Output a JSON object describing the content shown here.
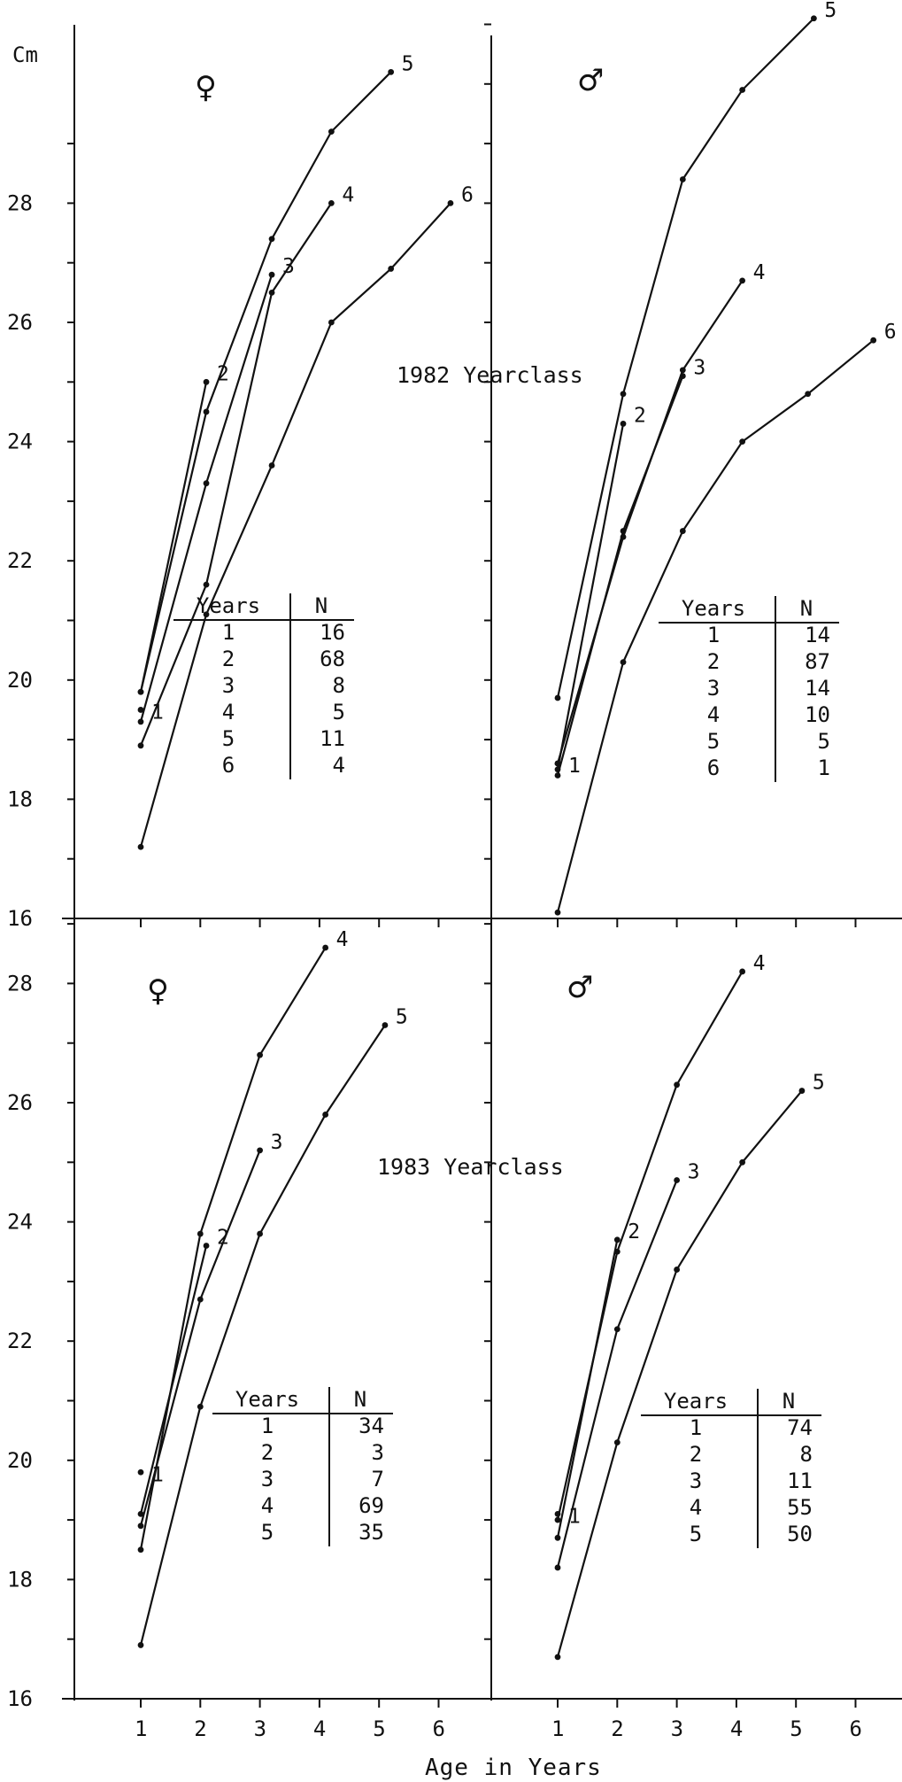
{
  "figure": {
    "y_unit": "Cm",
    "xlabel": "Age in Years",
    "panels_meta": [
      {
        "symbol": "♀",
        "yearclass_label": "1982 Yearclass"
      },
      {
        "symbol": "♂",
        "yearclass_label": ""
      },
      {
        "symbol": "♀",
        "yearclass_label": "1983 Yearclass"
      },
      {
        "symbol": "♂",
        "yearclass_label": ""
      }
    ]
  },
  "chart_data": [
    {
      "type": "line",
      "panel": "1982 Yearclass female",
      "xlim": [
        0,
        6.5
      ],
      "ylim": [
        16,
        30.2
      ],
      "y_ticks": [
        16,
        18,
        20,
        22,
        24,
        26,
        28
      ],
      "x_ticks": [
        1,
        2,
        3,
        4,
        5,
        6
      ],
      "series": [
        {
          "name": "1",
          "x": [
            1
          ],
          "y": [
            19.5
          ]
        },
        {
          "name": "2",
          "x": [
            1,
            2.1
          ],
          "y": [
            19.8,
            25.0
          ]
        },
        {
          "name": "3",
          "x": [
            1,
            2.1,
            3.2
          ],
          "y": [
            19.3,
            23.3,
            26.8
          ]
        },
        {
          "name": "4",
          "x": [
            1,
            2.1,
            3.2,
            4.2
          ],
          "y": [
            18.9,
            21.6,
            26.5,
            28.0
          ]
        },
        {
          "name": "5",
          "x": [
            1,
            2.1,
            3.2,
            4.2,
            5.2
          ],
          "y": [
            19.8,
            24.5,
            27.4,
            29.2,
            30.2
          ]
        },
        {
          "name": "6",
          "x": [
            1,
            2.1,
            3.2,
            4.2,
            5.2,
            6.2
          ],
          "y": [
            17.2,
            21.1,
            23.6,
            26.0,
            26.9,
            28.0
          ]
        }
      ],
      "table": {
        "headers": [
          "Years",
          "N"
        ],
        "rows": [
          [
            "1",
            "16"
          ],
          [
            "2",
            "68"
          ],
          [
            "3",
            "8"
          ],
          [
            "4",
            "5"
          ],
          [
            "5",
            "11"
          ],
          [
            "6",
            "4"
          ]
        ]
      }
    },
    {
      "type": "line",
      "panel": "1982 Yearclass male",
      "xlim": [
        0,
        6.5
      ],
      "ylim": [
        16,
        31.6
      ],
      "y_ticks": [
        16,
        18,
        20,
        22,
        24,
        26,
        28,
        30
      ],
      "x_ticks": [
        1,
        2,
        3,
        4,
        5,
        6
      ],
      "series": [
        {
          "name": "1",
          "x": [
            1
          ],
          "y": [
            18.6
          ]
        },
        {
          "name": "2",
          "x": [
            1,
            2.1
          ],
          "y": [
            18.5,
            24.3
          ]
        },
        {
          "name": "3",
          "x": [
            1,
            2.1,
            3.1
          ],
          "y": [
            18.4,
            22.5,
            25.1
          ]
        },
        {
          "name": "4",
          "x": [
            1,
            2.1,
            3.1,
            4.1
          ],
          "y": [
            18.6,
            22.4,
            25.2,
            26.7
          ]
        },
        {
          "name": "5",
          "x": [
            1,
            2.1,
            3.1,
            4.1,
            5.3
          ],
          "y": [
            19.7,
            24.8,
            28.4,
            29.9,
            31.1
          ]
        },
        {
          "name": "6",
          "x": [
            1,
            2.1,
            3.1,
            4.1,
            5.2,
            6.3
          ],
          "y": [
            16.1,
            20.3,
            22.5,
            24.0,
            24.8,
            25.7
          ]
        }
      ],
      "table": {
        "headers": [
          "Years",
          "N"
        ],
        "rows": [
          [
            "1",
            "14"
          ],
          [
            "2",
            "87"
          ],
          [
            "3",
            "14"
          ],
          [
            "4",
            "10"
          ],
          [
            "5",
            "5"
          ],
          [
            "6",
            "1"
          ]
        ]
      }
    },
    {
      "type": "line",
      "panel": "1983 Yearclass female",
      "xlim": [
        0,
        6.5
      ],
      "ylim": [
        16,
        28.5
      ],
      "y_ticks": [
        16,
        18,
        20,
        22,
        24,
        26,
        28
      ],
      "x_ticks": [
        1,
        2,
        3,
        4,
        5,
        6
      ],
      "series": [
        {
          "name": "1",
          "x": [
            1
          ],
          "y": [
            19.8
          ]
        },
        {
          "name": "2",
          "x": [
            1,
            2.1
          ],
          "y": [
            19.1,
            23.6
          ]
        },
        {
          "name": "3",
          "x": [
            1,
            2,
            3
          ],
          "y": [
            18.9,
            22.7,
            25.2
          ]
        },
        {
          "name": "4",
          "x": [
            1,
            2,
            3,
            4.1
          ],
          "y": [
            18.5,
            23.8,
            26.8,
            28.6
          ]
        },
        {
          "name": "5",
          "x": [
            1,
            2,
            3,
            4.1,
            5.1
          ],
          "y": [
            16.9,
            20.9,
            23.8,
            25.8,
            27.3
          ]
        }
      ],
      "table": {
        "headers": [
          "Years",
          "N"
        ],
        "rows": [
          [
            "1",
            "34"
          ],
          [
            "2",
            "3"
          ],
          [
            "3",
            "7"
          ],
          [
            "4",
            "69"
          ],
          [
            "5",
            "35"
          ]
        ]
      }
    },
    {
      "type": "line",
      "panel": "1983 Yearclass male",
      "xlim": [
        0,
        6.5
      ],
      "ylim": [
        16,
        28.5
      ],
      "y_ticks": [
        16,
        18,
        20,
        22,
        24,
        26,
        28
      ],
      "x_ticks": [
        1,
        2,
        3,
        4,
        5,
        6
      ],
      "series": [
        {
          "name": "1",
          "x": [
            1
          ],
          "y": [
            19.1
          ]
        },
        {
          "name": "2",
          "x": [
            1,
            2
          ],
          "y": [
            18.7,
            23.7
          ]
        },
        {
          "name": "3",
          "x": [
            1,
            2,
            3
          ],
          "y": [
            18.2,
            22.2,
            24.7
          ]
        },
        {
          "name": "4",
          "x": [
            1,
            2,
            3,
            4.1
          ],
          "y": [
            19.0,
            23.5,
            26.3,
            28.2
          ]
        },
        {
          "name": "5",
          "x": [
            1,
            2,
            3,
            4.1,
            5.1
          ],
          "y": [
            16.7,
            20.3,
            23.2,
            25.0,
            26.2
          ]
        }
      ],
      "table": {
        "headers": [
          "Years",
          "N"
        ],
        "rows": [
          [
            "1",
            "74"
          ],
          [
            "2",
            "8"
          ],
          [
            "3",
            "11"
          ],
          [
            "4",
            "55"
          ],
          [
            "5",
            "50"
          ]
        ]
      }
    }
  ]
}
